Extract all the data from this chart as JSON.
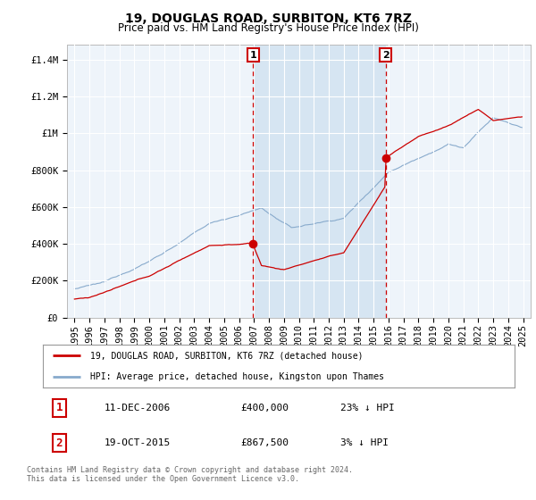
{
  "title": "19, DOUGLAS ROAD, SURBITON, KT6 7RZ",
  "subtitle": "Price paid vs. HM Land Registry's House Price Index (HPI)",
  "ylabel_ticks": [
    "£0",
    "£200K",
    "£400K",
    "£600K",
    "£800K",
    "£1M",
    "£1.2M",
    "£1.4M"
  ],
  "ytick_values": [
    0,
    200000,
    400000,
    600000,
    800000,
    1000000,
    1200000,
    1400000
  ],
  "ylim": [
    0,
    1480000
  ],
  "vline1_year": 2006.94,
  "vline2_year": 2015.8,
  "marker1_year": 2006.94,
  "marker1_value": 400000,
  "marker2_year": 2015.8,
  "marker2_value": 867500,
  "red_line_color": "#cc0000",
  "blue_line_color": "#88aacc",
  "shade_color": "#ddeeff",
  "vline_color": "#cc0000",
  "background_color": "#ffffff",
  "plot_bg_color": "#eef4fa",
  "grid_color": "#ffffff",
  "legend_entry1": "19, DOUGLAS ROAD, SURBITON, KT6 7RZ (detached house)",
  "legend_entry2": "HPI: Average price, detached house, Kingston upon Thames",
  "table_row1_num": "1",
  "table_row1_date": "11-DEC-2006",
  "table_row1_price": "£400,000",
  "table_row1_hpi": "23% ↓ HPI",
  "table_row2_num": "2",
  "table_row2_date": "19-OCT-2015",
  "table_row2_price": "£867,500",
  "table_row2_hpi": "3% ↓ HPI",
  "footer": "Contains HM Land Registry data © Crown copyright and database right 2024.\nThis data is licensed under the Open Government Licence v3.0.",
  "title_fontsize": 10,
  "subtitle_fontsize": 8.5,
  "axis_fontsize": 7.5
}
